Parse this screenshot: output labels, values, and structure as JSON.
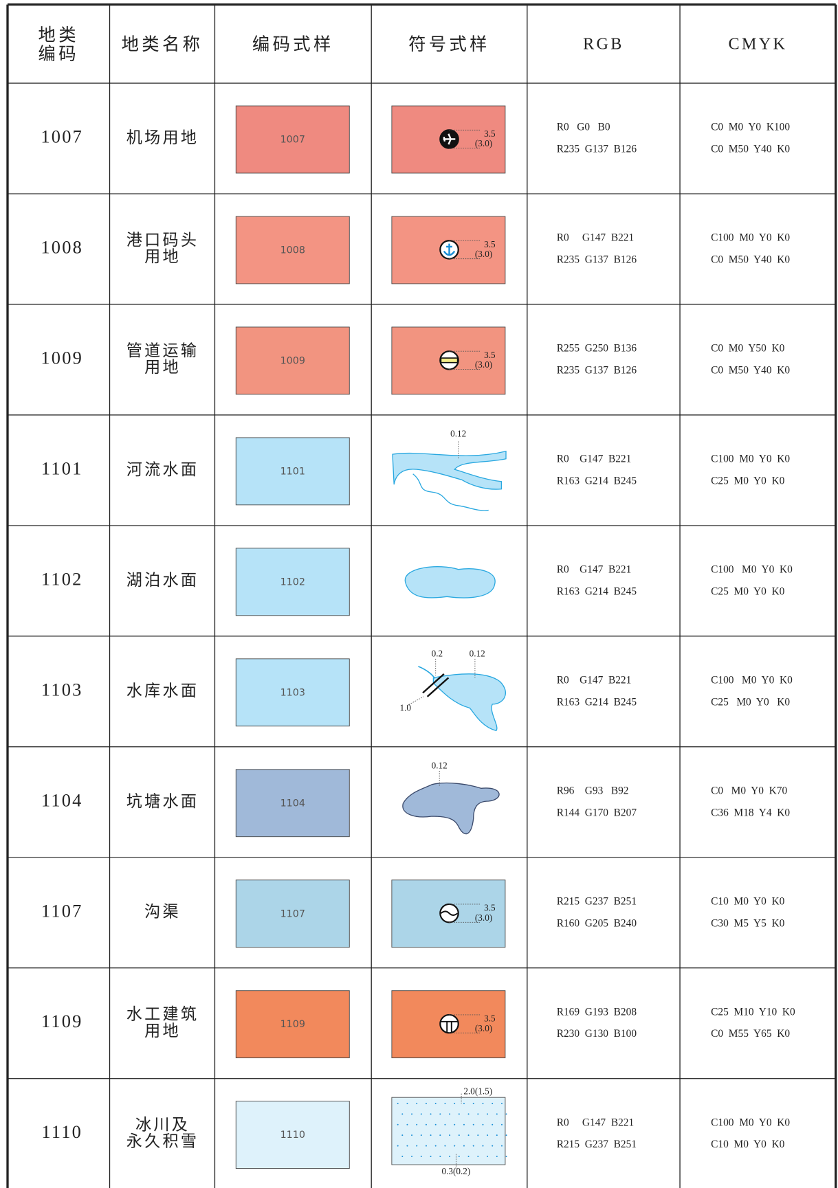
{
  "header": [
    [
      "地类",
      "编码"
    ],
    [
      "地类名称"
    ],
    [
      "编码式样"
    ],
    [
      "符号式样"
    ],
    [
      "RGB"
    ],
    [
      "CMYK"
    ]
  ],
  "rows": [
    {
      "code": "1007",
      "name": [
        "机场用地"
      ],
      "color": "#ef8a80",
      "symbol_labels": [
        "3.5",
        "(3.0)"
      ],
      "rgb": [
        "R0   G0   B0",
        "R235  G137  B126"
      ],
      "cmyk": [
        "C0  M0  Y0  K100",
        "C0  M50  Y40  K0"
      ]
    },
    {
      "code": "1008",
      "name": [
        "港口码头",
        "用地"
      ],
      "color": "#f39483",
      "symbol_labels": [
        "3.5",
        "(3.0)"
      ],
      "rgb": [
        "R0     G147  B221",
        "R235  G137  B126"
      ],
      "cmyk": [
        "C100  M0  Y0  K0",
        "C0  M50  Y40  K0"
      ]
    },
    {
      "code": "1009",
      "name": [
        "管道运输",
        "用地"
      ],
      "color": "#f29480",
      "symbol_labels": [
        "3.5",
        "(3.0)"
      ],
      "rgb": [
        "R255  G250  B136",
        "R235  G137  B126"
      ],
      "cmyk": [
        "C0  M0  Y50  K0",
        "C0  M50  Y40  K0"
      ]
    },
    {
      "code": "1101",
      "name": [
        "河流水面"
      ],
      "color": "#b6e3f8",
      "symbol_labels": [
        "0.12"
      ],
      "rgb": [
        "R0    G147  B221",
        "R163  G214  B245"
      ],
      "cmyk": [
        "C100  M0  Y0  K0",
        "C25  M0  Y0  K0"
      ]
    },
    {
      "code": "1102",
      "name": [
        "湖泊水面"
      ],
      "color": "#b6e3f8",
      "symbol_labels": [],
      "rgb": [
        "R0    G147  B221",
        "R163  G214  B245"
      ],
      "cmyk": [
        "C100   M0  Y0  K0",
        "C25  M0  Y0  K0"
      ]
    },
    {
      "code": "1103",
      "name": [
        "水库水面"
      ],
      "color": "#b6e3f8",
      "symbol_labels": [
        "0.2",
        "0.12",
        "1.0"
      ],
      "rgb": [
        "R0    G147  B221",
        "R163  G214  B245"
      ],
      "cmyk": [
        "C100   M0  Y0  K0",
        "C25   M0  Y0   K0"
      ]
    },
    {
      "code": "1104",
      "name": [
        "坑塘水面"
      ],
      "color": "#a0b9d9",
      "symbol_labels": [
        "0.12"
      ],
      "rgb": [
        "R96    G93   B92",
        "R144  G170  B207"
      ],
      "cmyk": [
        "C0   M0  Y0  K70",
        "C36  M18  Y4  K0"
      ]
    },
    {
      "code": "1107",
      "name": [
        "沟渠"
      ],
      "color": "#acd5e8",
      "symbol_labels": [
        "3.5",
        "(3.0)"
      ],
      "rgb": [
        "R215  G237  B251",
        "R160  G205  B240"
      ],
      "cmyk": [
        "C10  M0  Y0  K0",
        "C30  M5  Y5  K0"
      ]
    },
    {
      "code": "1109",
      "name": [
        "水工建筑",
        "用地"
      ],
      "color": "#f2895c",
      "symbol_labels": [
        "3.5",
        "(3.0)"
      ],
      "rgb": [
        "R169  G193  B208",
        "R230  G130  B100"
      ],
      "cmyk": [
        "C25  M10  Y10  K0",
        "C0  M55  Y65  K0"
      ]
    },
    {
      "code": "1110",
      "name": [
        "冰川及",
        "永久积雪"
      ],
      "color": "#def2fb",
      "symbol_labels": [
        "2.0(1.5)",
        "0.3(0.2)"
      ],
      "rgb": [
        "R0     G147  B221",
        "R215  G237  B251"
      ],
      "cmyk": [
        "C100  M0  Y0  K0",
        "C10  M0  Y0  K0"
      ]
    }
  ]
}
